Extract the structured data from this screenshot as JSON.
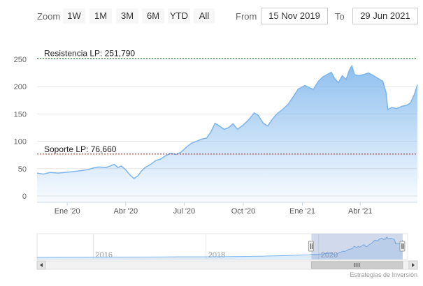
{
  "toolbar": {
    "zoom_label": "Zoom",
    "buttons": [
      "1W",
      "1M",
      "3M",
      "6M",
      "YTD",
      "All"
    ],
    "from_label": "From",
    "from_value": "15 Nov 2019",
    "to_label": "To",
    "to_value": "29 Jun 2021"
  },
  "colors": {
    "series": "#7cb5ec",
    "resistance": "#1a7a1a",
    "support": "#8b1a1a",
    "navigator_mask": "#6685c2"
  },
  "chart_data": {
    "type": "area",
    "x_start": "2019-11-15",
    "x_end": "2021-06-29",
    "ylim": [
      0,
      250
    ],
    "y_ticks": [
      0,
      50,
      100,
      150,
      200,
      250
    ],
    "x_tick_labels": [
      {
        "label": "Ene '20",
        "date": "2020-01-01"
      },
      {
        "label": "Abr '20",
        "date": "2020-04-01"
      },
      {
        "label": "Jul '20",
        "date": "2020-07-01"
      },
      {
        "label": "Oct '20",
        "date": "2020-10-01"
      },
      {
        "label": "Ene '21",
        "date": "2021-01-01"
      },
      {
        "label": "Abr '21",
        "date": "2021-04-01"
      }
    ],
    "series": [
      {
        "points": [
          [
            "2019-11-15",
            42
          ],
          [
            "2019-11-25",
            40
          ],
          [
            "2019-12-05",
            43
          ],
          [
            "2019-12-18",
            42
          ],
          [
            "2020-01-05",
            44
          ],
          [
            "2020-01-20",
            46
          ],
          [
            "2020-02-01",
            48
          ],
          [
            "2020-02-10",
            51
          ],
          [
            "2020-02-20",
            53
          ],
          [
            "2020-03-01",
            52
          ],
          [
            "2020-03-08",
            55
          ],
          [
            "2020-03-14",
            58
          ],
          [
            "2020-03-20",
            52
          ],
          [
            "2020-03-25",
            55
          ],
          [
            "2020-04-01",
            48
          ],
          [
            "2020-04-08",
            38
          ],
          [
            "2020-04-14",
            32
          ],
          [
            "2020-04-20",
            37
          ],
          [
            "2020-04-25",
            45
          ],
          [
            "2020-05-01",
            52
          ],
          [
            "2020-05-10",
            58
          ],
          [
            "2020-05-18",
            65
          ],
          [
            "2020-05-26",
            68
          ],
          [
            "2020-06-01",
            73
          ],
          [
            "2020-06-10",
            78
          ],
          [
            "2020-06-18",
            76
          ],
          [
            "2020-06-26",
            80
          ],
          [
            "2020-07-05",
            90
          ],
          [
            "2020-07-12",
            96
          ],
          [
            "2020-07-20",
            100
          ],
          [
            "2020-07-28",
            104
          ],
          [
            "2020-08-05",
            106
          ],
          [
            "2020-08-12",
            118
          ],
          [
            "2020-08-18",
            133
          ],
          [
            "2020-08-25",
            128
          ],
          [
            "2020-09-01",
            122
          ],
          [
            "2020-09-08",
            125
          ],
          [
            "2020-09-15",
            132
          ],
          [
            "2020-09-22",
            122
          ],
          [
            "2020-10-01",
            130
          ],
          [
            "2020-10-10",
            140
          ],
          [
            "2020-10-18",
            152
          ],
          [
            "2020-10-24",
            148
          ],
          [
            "2020-11-01",
            133
          ],
          [
            "2020-11-08",
            128
          ],
          [
            "2020-11-15",
            140
          ],
          [
            "2020-11-22",
            150
          ],
          [
            "2020-12-01",
            158
          ],
          [
            "2020-12-10",
            168
          ],
          [
            "2020-12-18",
            182
          ],
          [
            "2020-12-26",
            196
          ],
          [
            "2021-01-05",
            202
          ],
          [
            "2021-01-12",
            198
          ],
          [
            "2021-01-18",
            195
          ],
          [
            "2021-01-26",
            210
          ],
          [
            "2021-02-02",
            218
          ],
          [
            "2021-02-08",
            222
          ],
          [
            "2021-02-15",
            226
          ],
          [
            "2021-02-20",
            215
          ],
          [
            "2021-02-26",
            207
          ],
          [
            "2021-03-04",
            220
          ],
          [
            "2021-03-10",
            213
          ],
          [
            "2021-03-15",
            230
          ],
          [
            "2021-03-19",
            238
          ],
          [
            "2021-03-23",
            222
          ],
          [
            "2021-03-30",
            220
          ],
          [
            "2021-04-06",
            222
          ],
          [
            "2021-04-14",
            225
          ],
          [
            "2021-04-22",
            220
          ],
          [
            "2021-04-30",
            214
          ],
          [
            "2021-05-06",
            210
          ],
          [
            "2021-05-11",
            190
          ],
          [
            "2021-05-14",
            158
          ],
          [
            "2021-05-20",
            162
          ],
          [
            "2021-05-28",
            160
          ],
          [
            "2021-06-05",
            164
          ],
          [
            "2021-06-12",
            166
          ],
          [
            "2021-06-18",
            170
          ],
          [
            "2021-06-24",
            185
          ],
          [
            "2021-06-29",
            203
          ]
        ]
      }
    ],
    "plot_lines": [
      {
        "name": "resistance",
        "label": "Resistencia LP: 251,790",
        "value": 251.79
      },
      {
        "name": "support",
        "label": "Soporte LP: 76,660",
        "value": 76.66
      }
    ],
    "navigator": {
      "x_start": "2015-01-01",
      "x_end": "2021-07-31",
      "tick_labels": [
        {
          "label": "2016",
          "date": "2016-01-01"
        },
        {
          "label": "2018",
          "date": "2018-01-01"
        },
        {
          "label": "2020",
          "date": "2020-01-01"
        }
      ],
      "history": [
        [
          "2015-01-01",
          8
        ],
        [
          "2015-06-01",
          9
        ],
        [
          "2016-01-01",
          10
        ],
        [
          "2016-06-01",
          11
        ],
        [
          "2017-01-01",
          12
        ],
        [
          "2017-06-01",
          14
        ],
        [
          "2018-01-01",
          15
        ],
        [
          "2018-06-01",
          18
        ],
        [
          "2019-01-01",
          22
        ],
        [
          "2019-06-01",
          28
        ],
        [
          "2019-11-01",
          38
        ]
      ]
    },
    "grid": true,
    "legend": "none"
  },
  "credit": "Estrategias de Inversión"
}
